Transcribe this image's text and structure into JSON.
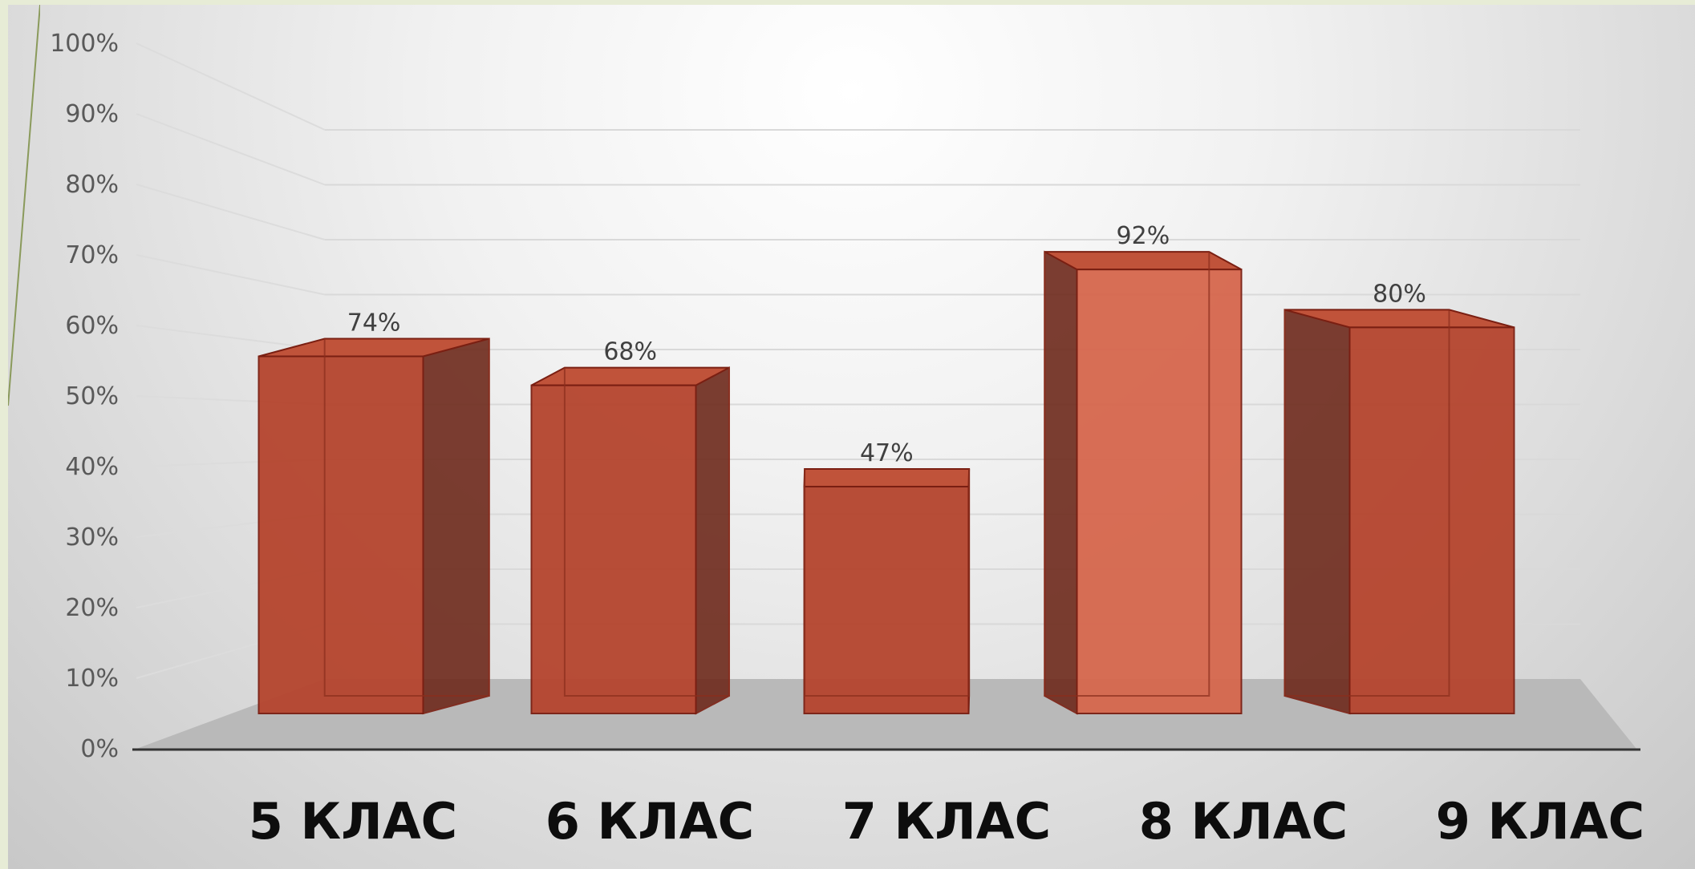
{
  "chart_data": {
    "type": "bar",
    "categories": [
      "5 КЛАС",
      "6 КЛАС",
      "7 КЛАС",
      "8 КЛАС",
      "9 КЛАС"
    ],
    "values": [
      74,
      68,
      47,
      92,
      80
    ],
    "data_labels": [
      "74%",
      "68%",
      "47%",
      "92%",
      "80%"
    ],
    "y_ticks": [
      "0%",
      "10%",
      "20%",
      "30%",
      "40%",
      "50%",
      "60%",
      "70%",
      "80%",
      "90%",
      "100%"
    ],
    "ylim": [
      0,
      100
    ],
    "title": "",
    "xlabel": "",
    "ylabel": "",
    "grid": true,
    "three_d": true,
    "bar_color": "#b5452e",
    "bar_edge_color": "#7a1f12",
    "floor_color": "#b9b9b9"
  }
}
